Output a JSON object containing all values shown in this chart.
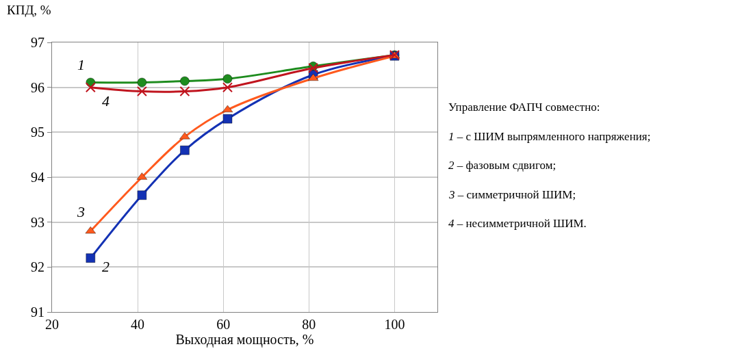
{
  "chart_data": {
    "type": "line",
    "ylabel": "КПД, %",
    "xlabel": "Выходная мощность, %",
    "x": [
      29,
      41,
      51,
      61,
      81,
      100
    ],
    "series": [
      {
        "name": "1",
        "color": "#1e8c1e",
        "marker": "circle",
        "values": [
          96.11,
          96.11,
          96.14,
          96.19,
          96.47,
          96.72
        ]
      },
      {
        "name": "2",
        "color": "#1432b4",
        "marker": "square",
        "values": [
          92.2,
          93.6,
          94.6,
          95.3,
          96.28,
          96.7
        ]
      },
      {
        "name": "3",
        "color": "#ff5a1e",
        "marker": "triangle",
        "values": [
          92.8,
          94.0,
          94.9,
          95.5,
          96.2,
          96.7
        ]
      },
      {
        "name": "4",
        "color": "#c0141e",
        "marker": "cross",
        "values": [
          96.0,
          95.91,
          95.91,
          96.0,
          96.43,
          96.72
        ]
      }
    ],
    "xlim": [
      20,
      110
    ],
    "xticks": [
      20,
      40,
      60,
      80,
      100
    ],
    "ylim": [
      91,
      97
    ],
    "yticks": [
      91,
      92,
      93,
      94,
      95,
      96,
      97
    ],
    "grid": true,
    "annotations": [
      "Управление ФАПЧ совместно:",
      "1 – с ШИМ выпрямленного напряжения;",
      "2 – фазовым сдвигом;",
      "3 – симметричной ШИМ;",
      "4 – несимметричной ШИМ."
    ]
  }
}
